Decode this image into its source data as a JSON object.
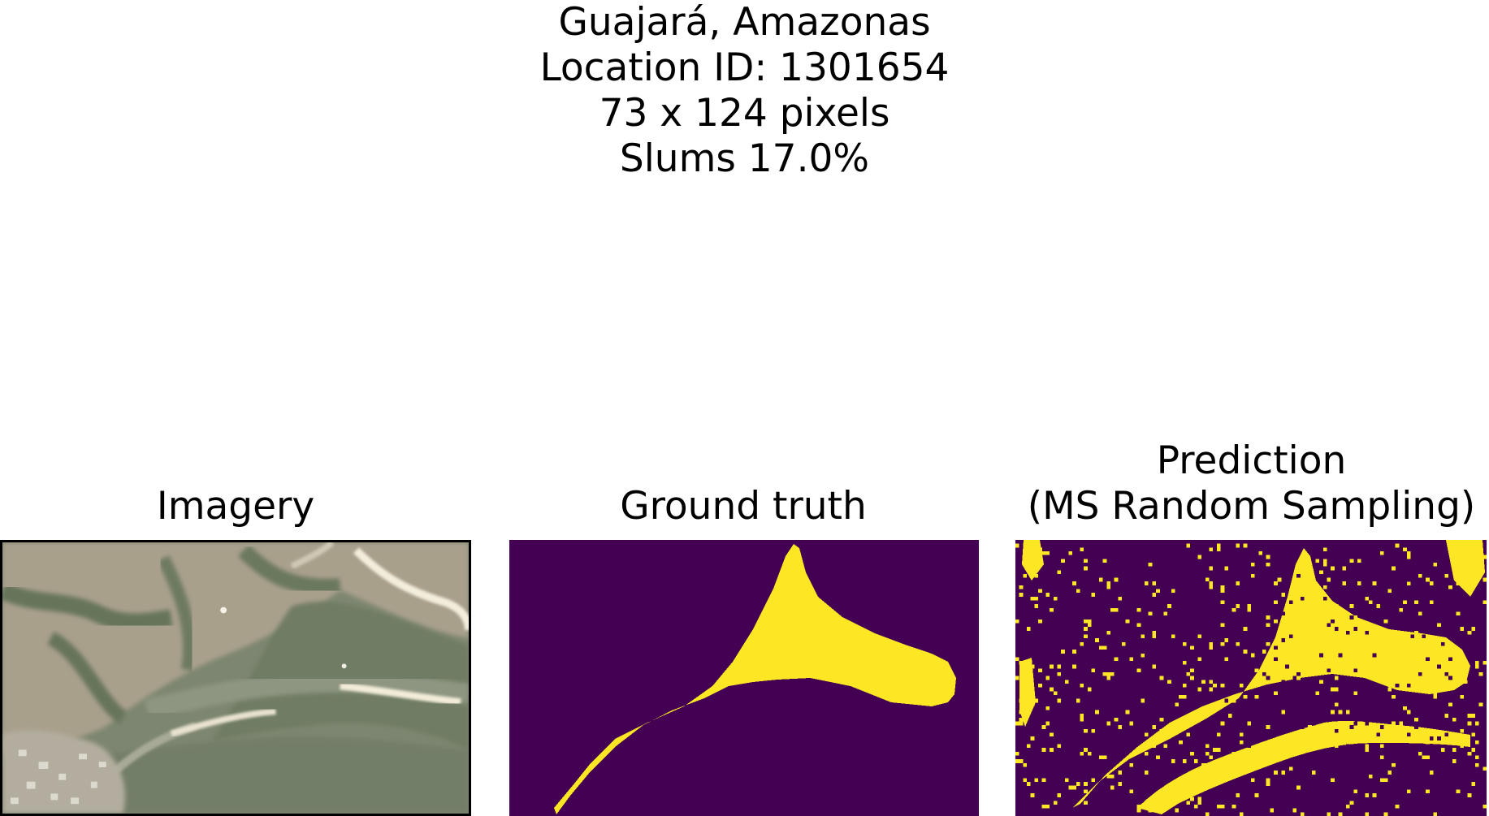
{
  "figure": {
    "title_lines": [
      "Guajará, Amazonas",
      "Location ID: 1301654",
      "73 x 124 pixels",
      "Slums 17.0%"
    ]
  },
  "panels": [
    {
      "title": "Imagery"
    },
    {
      "title": "Ground truth"
    },
    {
      "title_lines": [
        "Prediction",
        "(MS Random Sampling)"
      ]
    }
  ],
  "colors": {
    "background_class": "#440154",
    "slum_class": "#fde725"
  }
}
